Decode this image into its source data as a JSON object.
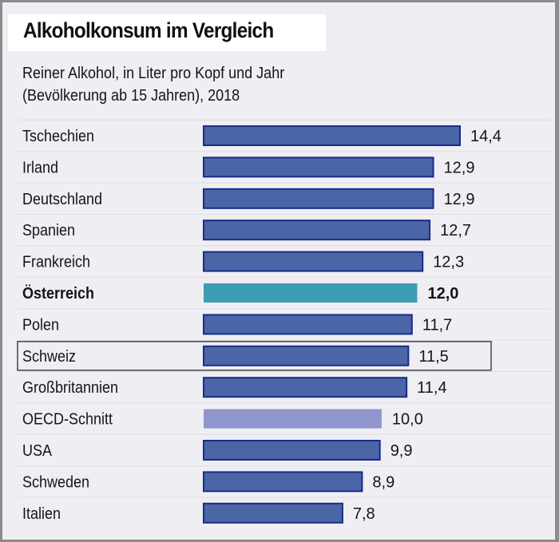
{
  "chart_data": {
    "type": "bar",
    "orientation": "horizontal",
    "title": "Alkoholkonsum im Vergleich",
    "subtitle": [
      "Reiner Alkohol, in Liter pro Kopf und Jahr",
      "(Bevölkerung ab 15 Jahren), 2018"
    ],
    "categories": [
      "Tschechien",
      "Irland",
      "Deutschland",
      "Spanien",
      "Frankreich",
      "Österreich",
      "Polen",
      "Schweiz",
      "Großbritannien",
      "OECD-Schnitt",
      "USA",
      "Schweden",
      "Italien"
    ],
    "values": [
      14.4,
      12.9,
      12.9,
      12.7,
      12.3,
      12.0,
      11.7,
      11.5,
      11.4,
      10.0,
      9.9,
      8.9,
      7.8
    ],
    "value_labels": [
      "14,4",
      "12,9",
      "12,9",
      "12,7",
      "12,3",
      "12,0",
      "11,7",
      "11,5",
      "11,4",
      "10,0",
      "9,9",
      "8,9",
      "7,8"
    ],
    "highlighted_bold": "Österreich",
    "boxed": "Schweiz",
    "colors": {
      "default": "#4a66a6",
      "default_border": "#1a2a8a",
      "Österreich": "#3c9db3",
      "OECD-Schnitt": "#8f96cc",
      "background": "#eeeef3"
    },
    "xlim": [
      0,
      14.4
    ],
    "grid": false
  }
}
